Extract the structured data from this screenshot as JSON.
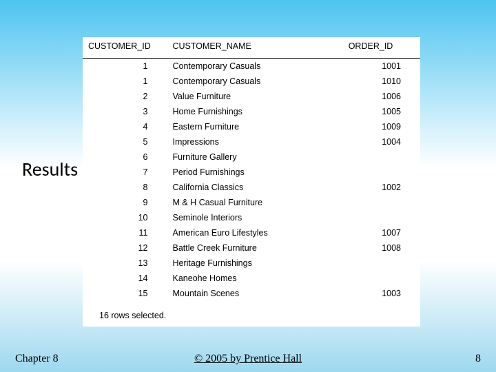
{
  "results_label": "Results",
  "table": {
    "type": "table",
    "columns": [
      "CUSTOMER_ID",
      "CUSTOMER_NAME",
      "ORDER_ID"
    ],
    "rows": [
      [
        "1",
        "Contemporary Casuals",
        "1001"
      ],
      [
        "1",
        "Contemporary Casuals",
        "1010"
      ],
      [
        "2",
        "Value Furniture",
        "1006"
      ],
      [
        "3",
        "Home Furnishings",
        "1005"
      ],
      [
        "4",
        "Eastern Furniture",
        "1009"
      ],
      [
        "5",
        "Impressions",
        "1004"
      ],
      [
        "6",
        "Furniture Gallery",
        ""
      ],
      [
        "7",
        "Period Furnishings",
        ""
      ],
      [
        "8",
        "California Classics",
        "1002"
      ],
      [
        "9",
        "M & H Casual Furniture",
        ""
      ],
      [
        "10",
        "Seminole Interiors",
        ""
      ],
      [
        "11",
        "American Euro Lifestyles",
        "1007"
      ],
      [
        "12",
        "Battle Creek Furniture",
        "1008"
      ],
      [
        "13",
        "Heritage Furnishings",
        ""
      ],
      [
        "14",
        "Kaneohe Homes",
        ""
      ],
      [
        "15",
        "Mountain Scenes",
        "1003"
      ]
    ],
    "status_text": "16 rows selected.",
    "header_fontsize": 12.5,
    "cell_fontsize": 12.5,
    "border_color": "#000000",
    "background_color": "#ffffff",
    "col_align": [
      "right",
      "left",
      "right"
    ]
  },
  "footer": {
    "chapter": "Chapter 8",
    "copyright": "© 2005 by Prentice Hall",
    "page_number": "8"
  },
  "colors": {
    "gradient_top": "#4cc4f0",
    "gradient_mid": "#ffffff",
    "gradient_bottom": "#9ed8ef"
  }
}
